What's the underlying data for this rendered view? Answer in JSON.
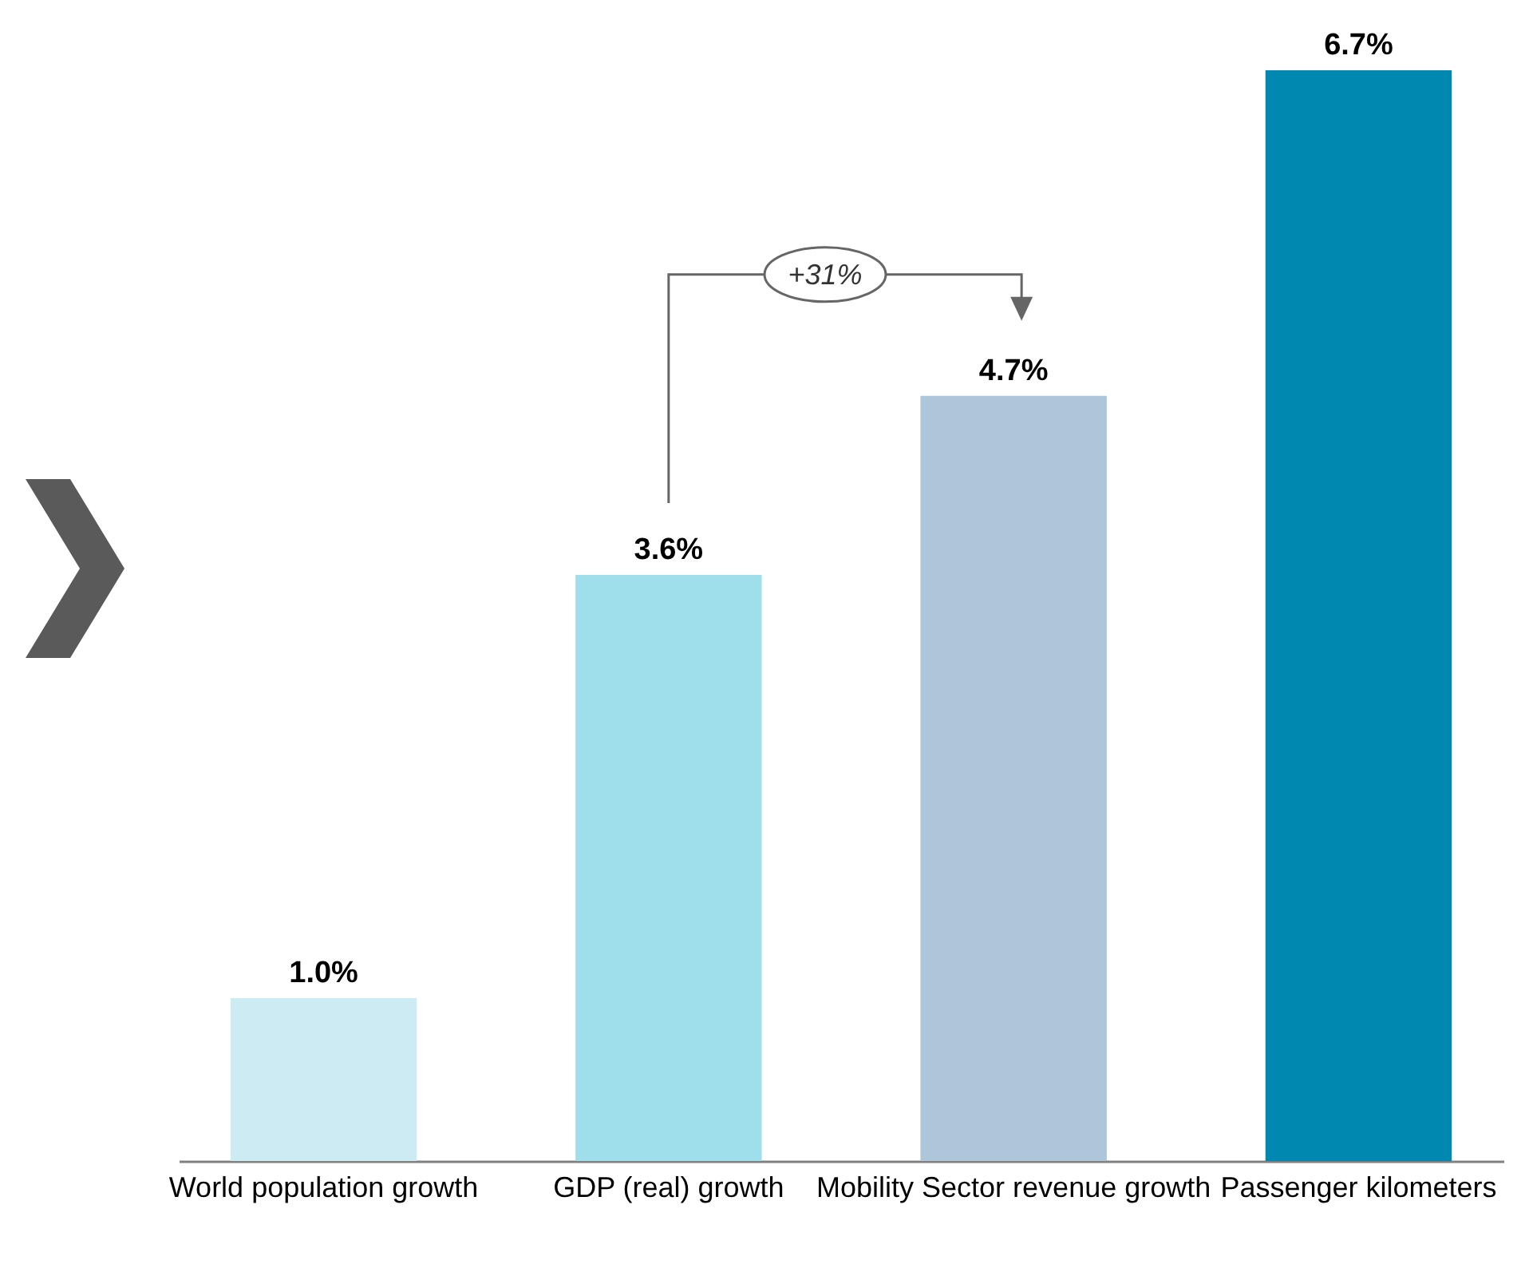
{
  "chart_data": {
    "type": "bar",
    "categories": [
      "World population\ngrowth",
      "GDP (real) growth",
      "Mobility Sector\nrevenue growth",
      "Passenger\nkilometers"
    ],
    "values": [
      1.0,
      3.6,
      4.7,
      6.7
    ],
    "colors": [
      "#cdebf2",
      "#9fdfec",
      "#adc6d9",
      "#0088b0"
    ],
    "value_labels": [
      "1.0%",
      "3.6%",
      "4.7%",
      "6.7%"
    ],
    "annotations": [
      "+31%"
    ],
    "tick_labels": "x"
  }
}
